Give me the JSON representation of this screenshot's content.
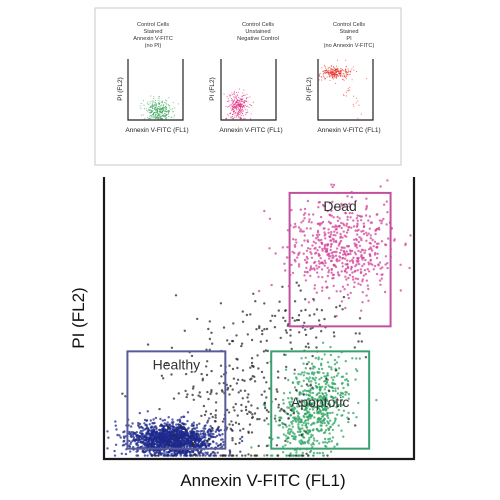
{
  "chart_data": [
    {
      "type": "scatter",
      "title_lines": [
        "Control Cells",
        "Stained",
        "Annexin V-FITC",
        "(no PI)"
      ],
      "xlabel": "Annexin  V-FITC  (FL1)",
      "ylabel": "PI (FL2)",
      "xlim": [
        0,
        1
      ],
      "ylim": [
        0,
        1
      ],
      "series": [
        {
          "color": "#3aa55a",
          "clusters": [
            {
              "x": 0.55,
              "y": 0.14,
              "sx": 0.13,
              "sy": 0.09,
              "n": 320
            }
          ]
        }
      ]
    },
    {
      "type": "scatter",
      "title_lines": [
        "Control Cells",
        "Unstained",
        "Negative Control"
      ],
      "xlabel": "Annexin  V-FITC  (FL1)",
      "ylabel": "PI (FL2)",
      "xlim": [
        0,
        1
      ],
      "ylim": [
        0,
        1
      ],
      "series": [
        {
          "color": "#e0287e",
          "clusters": [
            {
              "x": 0.3,
              "y": 0.22,
              "sx": 0.1,
              "sy": 0.12,
              "n": 300
            }
          ]
        }
      ]
    },
    {
      "type": "scatter",
      "title_lines": [
        "Control Cells",
        "Stained",
        "PI",
        "(no Annexin V-FITC)"
      ],
      "xlabel": "Annexin  V-FITC  (FL1)",
      "ylabel": "PI (FL2)",
      "xlim": [
        0,
        1
      ],
      "ylim": [
        0,
        1
      ],
      "series": [
        {
          "color": "#e8322a",
          "clusters": [
            {
              "x": 0.3,
              "y": 0.78,
              "sx": 0.14,
              "sy": 0.05,
              "n": 260
            },
            {
              "x": 0.55,
              "y": 0.45,
              "sx": 0.2,
              "sy": 0.2,
              "n": 25
            }
          ]
        }
      ]
    },
    {
      "type": "scatter",
      "xlabel": "Annexin  V-FITC  (FL1)",
      "ylabel": "PI (FL2)",
      "xlim": [
        0,
        1
      ],
      "ylim": [
        0,
        1
      ],
      "gates": [
        {
          "label": "Dead",
          "x": [
            0.6,
            0.93
          ],
          "y": [
            0.47,
            0.95
          ],
          "color": "#c44fa0"
        },
        {
          "label": "Healthy",
          "x": [
            0.07,
            0.39
          ],
          "y": [
            0.03,
            0.38
          ],
          "color": "#5a5a9a"
        },
        {
          "label": "Apoptotic",
          "x": [
            0.54,
            0.86
          ],
          "y": [
            0.03,
            0.38
          ],
          "color": "#3aa070"
        }
      ],
      "series": [
        {
          "color": "#1e2a8c",
          "clusters": [
            {
              "x": 0.22,
              "y": 0.06,
              "sx": 0.07,
              "sy": 0.03,
              "n": 1500
            }
          ]
        },
        {
          "color": "#2fa463",
          "clusters": [
            {
              "x": 0.68,
              "y": 0.17,
              "sx": 0.06,
              "sy": 0.09,
              "n": 620,
              "rho": 0.45
            }
          ]
        },
        {
          "color": "#d3449a",
          "clusters": [
            {
              "x": 0.77,
              "y": 0.75,
              "sx": 0.09,
              "sy": 0.09,
              "n": 560
            }
          ]
        },
        {
          "color": "#2a2a2a",
          "clusters": [
            {
              "x": 0.44,
              "y": 0.2,
              "sx": 0.14,
              "sy": 0.13,
              "n": 280
            },
            {
              "x": 0.6,
              "y": 0.48,
              "sx": 0.12,
              "sy": 0.06,
              "n": 90
            }
          ]
        }
      ]
    }
  ]
}
